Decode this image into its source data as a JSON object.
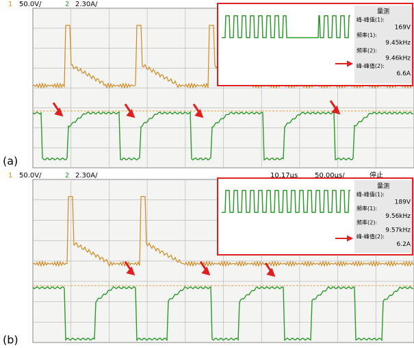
{
  "panels": [
    {
      "label": "(a)",
      "header": {
        "ch1": "1",
        "ch1_scale": "50.0V/",
        "ch2": "2",
        "ch2_scale": "2.30A/"
      },
      "measure": {
        "title": "量测",
        "rows": [
          [
            "峰-峰值(1):",
            "169V"
          ],
          [
            "频率(1):",
            "9.45kHz"
          ],
          [
            "频率(2):",
            "9.46kHz"
          ],
          [
            "峰-峰值(2):",
            "6.6A"
          ]
        ]
      }
    },
    {
      "label": "(b)",
      "header": {
        "ch1": "1",
        "ch1_scale": "50.0V/",
        "ch2": "2",
        "ch2_scale": "2.30A/",
        "time": "10.17µs",
        "timebase": "50.00µs/",
        "status": "停止"
      },
      "measure": {
        "title": "量测",
        "rows": [
          [
            "峰-峰值(1):",
            "189V"
          ],
          [
            "频率(1):",
            "9.56kHz"
          ],
          [
            "频率(2):",
            "9.57kHz"
          ],
          [
            "峰-峰值(2):",
            "6.2A"
          ]
        ]
      }
    }
  ]
}
